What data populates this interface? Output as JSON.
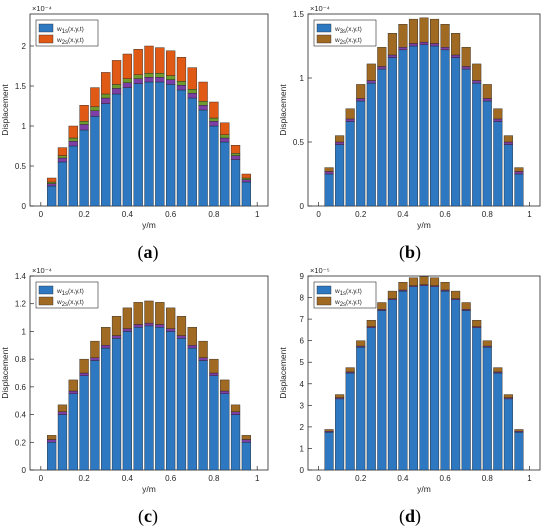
{
  "chart_data": [
    {
      "type": "bar",
      "panel_label": "(a)",
      "exponent_label": "×10⁻⁴",
      "xlabel": "y/m",
      "ylabel": "Displacement",
      "xlim": [
        -0.05,
        1.05
      ],
      "ylim": [
        0,
        2.4
      ],
      "xticks": [
        "0",
        "0.2",
        "0.4",
        "0.6",
        "0.8",
        "1"
      ],
      "yticks": [
        "0",
        "0.5",
        "1",
        "1.5",
        "2"
      ],
      "legend": [
        "w_{1s}(x,y,t)",
        "w_{2s}(x,y,t)"
      ],
      "x": [
        0.05,
        0.1,
        0.15,
        0.2,
        0.25,
        0.3,
        0.35,
        0.4,
        0.45,
        0.5,
        0.55,
        0.6,
        0.65,
        0.7,
        0.75,
        0.8,
        0.85,
        0.9,
        0.95
      ],
      "series": [
        {
          "name": "w_{1s}(x,y,t)",
          "color": "#2e78c2",
          "values": [
            0.25,
            0.55,
            0.75,
            0.95,
            1.12,
            1.28,
            1.4,
            1.48,
            1.53,
            1.55,
            1.55,
            1.52,
            1.45,
            1.35,
            1.2,
            1.0,
            0.8,
            0.58,
            0.3
          ]
        },
        {
          "name": "w_{1s} top",
          "color": "#7d3fa6",
          "values": [
            0.03,
            0.05,
            0.06,
            0.07,
            0.07,
            0.07,
            0.07,
            0.06,
            0.06,
            0.06,
            0.06,
            0.06,
            0.06,
            0.06,
            0.06,
            0.06,
            0.05,
            0.05,
            0.03
          ]
        },
        {
          "name": "green band",
          "color": "#6f9a2e",
          "values": [
            0.02,
            0.03,
            0.04,
            0.04,
            0.05,
            0.05,
            0.05,
            0.05,
            0.05,
            0.05,
            0.05,
            0.05,
            0.05,
            0.05,
            0.05,
            0.04,
            0.04,
            0.03,
            0.02
          ]
        },
        {
          "name": "w_{2s}(x,y,t)",
          "color": "#e05a16",
          "values": [
            0.05,
            0.1,
            0.15,
            0.2,
            0.24,
            0.27,
            0.3,
            0.31,
            0.32,
            0.34,
            0.32,
            0.31,
            0.3,
            0.27,
            0.24,
            0.2,
            0.15,
            0.1,
            0.05
          ]
        }
      ]
    },
    {
      "type": "bar",
      "panel_label": "(b)",
      "exponent_label": "×10⁻⁴",
      "xlabel": "y/m",
      "ylabel": "Displacement",
      "xlim": [
        -0.05,
        1.05
      ],
      "ylim": [
        0,
        1.5
      ],
      "xticks": [
        "0",
        "0.2",
        "0.4",
        "0.6",
        "0.8",
        "1"
      ],
      "yticks": [
        "0",
        "0.5",
        "1",
        "1.5"
      ],
      "legend": [
        "w_{3s}(x,y,t)",
        "w_{2s}(x,y,t)"
      ],
      "x": [
        0.05,
        0.1,
        0.15,
        0.2,
        0.25,
        0.3,
        0.35,
        0.4,
        0.45,
        0.5,
        0.55,
        0.6,
        0.65,
        0.7,
        0.75,
        0.8,
        0.85,
        0.9,
        0.95
      ],
      "series": [
        {
          "name": "w_{3s}(x,y,t)",
          "color": "#2e78c2",
          "values": [
            0.25,
            0.48,
            0.66,
            0.82,
            0.96,
            1.07,
            1.16,
            1.22,
            1.25,
            1.26,
            1.25,
            1.22,
            1.16,
            1.07,
            0.96,
            0.82,
            0.66,
            0.48,
            0.25
          ]
        },
        {
          "name": "w_{3s} top",
          "color": "#7d3fa6",
          "values": [
            0.02,
            0.02,
            0.02,
            0.02,
            0.02,
            0.02,
            0.02,
            0.02,
            0.02,
            0.02,
            0.02,
            0.02,
            0.02,
            0.02,
            0.02,
            0.02,
            0.02,
            0.02,
            0.02
          ]
        },
        {
          "name": "w_{2s}(x,y,t)",
          "color": "#a06a22",
          "values": [
            0.03,
            0.05,
            0.08,
            0.11,
            0.13,
            0.15,
            0.17,
            0.18,
            0.19,
            0.19,
            0.19,
            0.18,
            0.17,
            0.15,
            0.13,
            0.11,
            0.08,
            0.05,
            0.03
          ]
        }
      ]
    },
    {
      "type": "bar",
      "panel_label": "(c)",
      "exponent_label": "×10⁻⁴",
      "xlabel": "y/m",
      "ylabel": "Displacement",
      "xlim": [
        -0.05,
        1.05
      ],
      "ylim": [
        0,
        1.4
      ],
      "xticks": [
        "0",
        "0.2",
        "0.4",
        "0.6",
        "0.8",
        "1"
      ],
      "yticks": [
        "0",
        "0.2",
        "0.4",
        "0.6",
        "0.8",
        "1",
        "1.2",
        "1.4"
      ],
      "legend": [
        "w_{1s}(x,y,t)",
        "w_{2s}(x,y,t)"
      ],
      "x": [
        0.05,
        0.1,
        0.15,
        0.2,
        0.25,
        0.3,
        0.35,
        0.4,
        0.45,
        0.5,
        0.55,
        0.6,
        0.65,
        0.7,
        0.75,
        0.8,
        0.85,
        0.9,
        0.95
      ],
      "series": [
        {
          "name": "w_{1s}(x,y,t)",
          "color": "#2e78c2",
          "values": [
            0.2,
            0.4,
            0.55,
            0.68,
            0.79,
            0.88,
            0.95,
            1.0,
            1.03,
            1.04,
            1.03,
            1.0,
            0.95,
            0.88,
            0.79,
            0.68,
            0.55,
            0.4,
            0.2
          ]
        },
        {
          "name": "w_{1s} top",
          "color": "#7d3fa6",
          "values": [
            0.02,
            0.02,
            0.02,
            0.02,
            0.02,
            0.02,
            0.02,
            0.02,
            0.02,
            0.02,
            0.02,
            0.02,
            0.02,
            0.02,
            0.02,
            0.02,
            0.02,
            0.02,
            0.02
          ]
        },
        {
          "name": "w_{2s}(x,y,t)",
          "color": "#a06a22",
          "values": [
            0.03,
            0.05,
            0.08,
            0.1,
            0.12,
            0.13,
            0.14,
            0.15,
            0.16,
            0.16,
            0.16,
            0.15,
            0.14,
            0.13,
            0.12,
            0.1,
            0.08,
            0.05,
            0.03
          ]
        }
      ]
    },
    {
      "type": "bar",
      "panel_label": "(d)",
      "exponent_label": "×10⁻⁵",
      "xlabel": "y/m",
      "ylabel": "Displacement",
      "xlim": [
        -0.05,
        1.05
      ],
      "ylim": [
        0,
        9
      ],
      "xticks": [
        "0",
        "0.2",
        "0.4",
        "0.6",
        "0.8",
        "1"
      ],
      "yticks": [
        "0",
        "1",
        "2",
        "3",
        "4",
        "5",
        "6",
        "7",
        "8",
        "9"
      ],
      "legend": [
        "w_{1s}(x,y,t)",
        "w_{2s}(x,y,t)"
      ],
      "x": [
        0.05,
        0.1,
        0.15,
        0.2,
        0.25,
        0.3,
        0.35,
        0.4,
        0.45,
        0.5,
        0.55,
        0.6,
        0.65,
        0.7,
        0.75,
        0.8,
        0.85,
        0.9,
        0.95
      ],
      "series": [
        {
          "name": "w_{1s}(x,y,t)",
          "color": "#2e78c2",
          "values": [
            1.75,
            3.3,
            4.5,
            5.7,
            6.6,
            7.4,
            7.9,
            8.3,
            8.5,
            8.55,
            8.5,
            8.3,
            7.9,
            7.4,
            6.6,
            5.7,
            4.5,
            3.3,
            1.75
          ]
        },
        {
          "name": "w_{1s} top",
          "color": "#7d3fa6",
          "values": [
            0.05,
            0.05,
            0.05,
            0.05,
            0.05,
            0.05,
            0.05,
            0.05,
            0.05,
            0.05,
            0.05,
            0.05,
            0.05,
            0.05,
            0.05,
            0.05,
            0.05,
            0.05,
            0.05
          ]
        },
        {
          "name": "w_{2s}(x,y,t)",
          "color": "#a06a22",
          "values": [
            0.08,
            0.15,
            0.2,
            0.25,
            0.3,
            0.32,
            0.35,
            0.36,
            0.37,
            0.37,
            0.37,
            0.36,
            0.35,
            0.32,
            0.3,
            0.25,
            0.2,
            0.15,
            0.08
          ]
        }
      ]
    }
  ]
}
